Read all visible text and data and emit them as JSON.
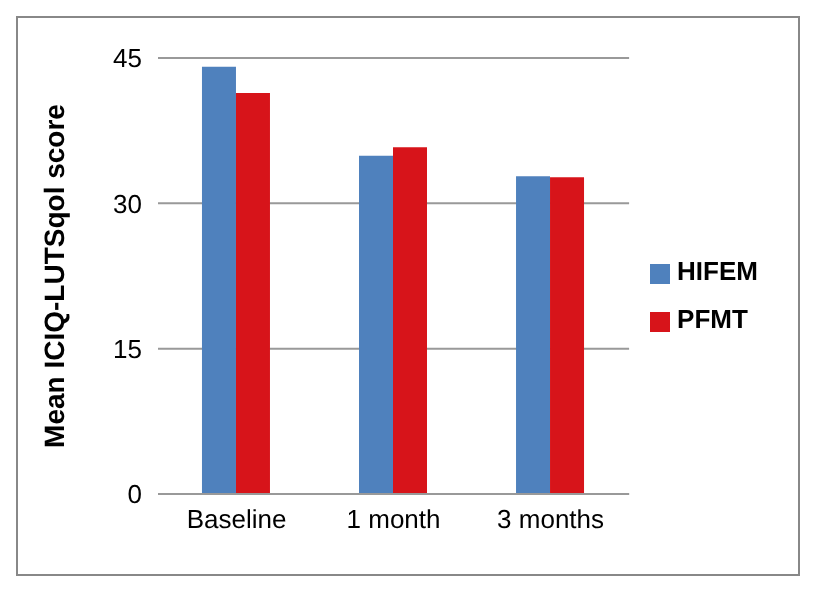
{
  "chart_data": {
    "type": "bar",
    "ylabel": "Mean ICIQ-LUTSqol score",
    "categories": [
      "Baseline",
      "1 month",
      "3 months"
    ],
    "series": [
      {
        "name": "HIFEM",
        "color": "#4f81bd",
        "values": [
          44.1,
          34.9,
          32.8
        ]
      },
      {
        "name": "PFMT",
        "color": "#d7141a",
        "values": [
          41.4,
          35.8,
          32.7
        ]
      }
    ],
    "ylim": [
      0,
      45
    ],
    "yticks": [
      0,
      15,
      30,
      45
    ],
    "grid": "y",
    "legend": "right"
  }
}
